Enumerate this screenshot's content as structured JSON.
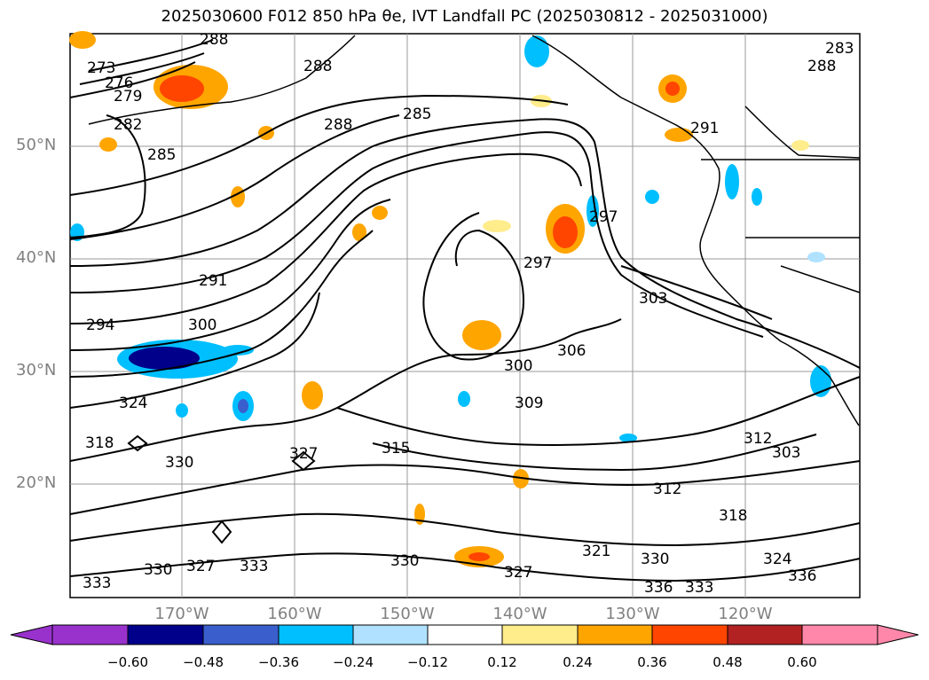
{
  "title": "2025030600 F012 850 hPa θe, IVT Landfall PC (2025030812 - 2025031000)",
  "lat_labels": [
    "50°N",
    "40°N",
    "30°N",
    "20°N"
  ],
  "lon_labels": [
    "170°W",
    "160°W",
    "150°W",
    "140°W",
    "130°W",
    "120°W"
  ],
  "contour_labels": [
    "288",
    "273",
    "276",
    "279",
    "282",
    "285",
    "288",
    "285",
    "288",
    "291",
    "288",
    "283",
    "297",
    "291",
    "294",
    "300",
    "297",
    "303",
    "306",
    "300",
    "324",
    "309",
    "318",
    "330",
    "327",
    "315",
    "312",
    "312",
    "303",
    "318",
    "321",
    "330",
    "327",
    "330",
    "327",
    "333",
    "330",
    "336",
    "333",
    "324",
    "336",
    "333"
  ],
  "colorbar": {
    "ticks": [
      "−0.60",
      "−0.48",
      "−0.36",
      "−0.24",
      "−0.12",
      "0.12",
      "0.24",
      "0.36",
      "0.48",
      "0.60"
    ],
    "colors": [
      "#9932cc",
      "#00008b",
      "#3a5fcd",
      "#00bfff",
      "#b0e2ff",
      "#ffffff",
      "#ffec8b",
      "#ffa500",
      "#ff4500",
      "#b22222",
      "#ff88aa"
    ]
  }
}
